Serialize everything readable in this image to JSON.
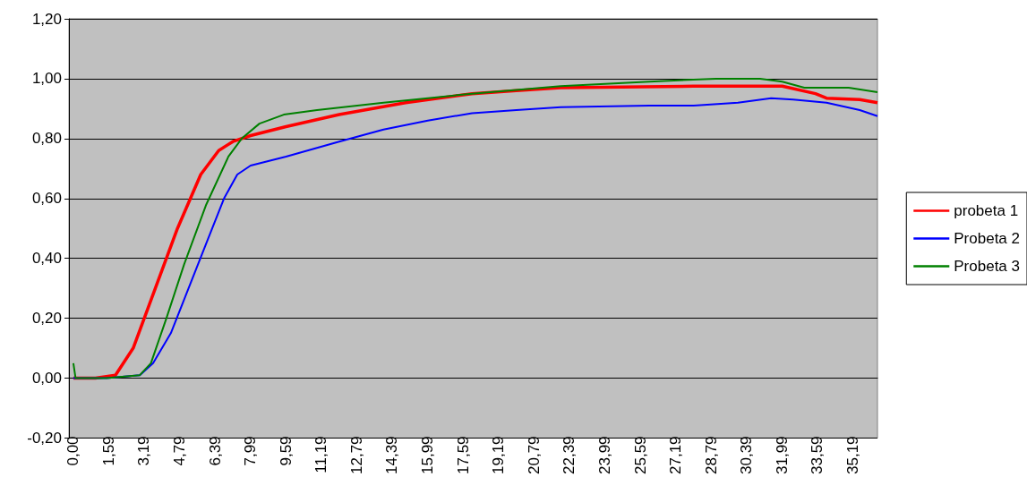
{
  "chart_data": {
    "type": "line",
    "xlim": [
      -0.2,
      36.3
    ],
    "ylim": [
      -0.2,
      1.2
    ],
    "xticks": [
      {
        "value": 0,
        "label": "0,00"
      },
      {
        "value": 1.59,
        "label": "1,59"
      },
      {
        "value": 3.19,
        "label": "3,19"
      },
      {
        "value": 4.79,
        "label": "4,79"
      },
      {
        "value": 6.39,
        "label": "6,39"
      },
      {
        "value": 7.99,
        "label": "7,99"
      },
      {
        "value": 9.59,
        "label": "9,59"
      },
      {
        "value": 11.19,
        "label": "11,19"
      },
      {
        "value": 12.79,
        "label": "12,79"
      },
      {
        "value": 14.39,
        "label": "14,39"
      },
      {
        "value": 15.99,
        "label": "15,99"
      },
      {
        "value": 17.59,
        "label": "17,59"
      },
      {
        "value": 19.19,
        "label": "19,19"
      },
      {
        "value": 20.79,
        "label": "20,79"
      },
      {
        "value": 22.39,
        "label": "22,39"
      },
      {
        "value": 23.99,
        "label": "23,99"
      },
      {
        "value": 25.59,
        "label": "25,59"
      },
      {
        "value": 27.19,
        "label": "27,19"
      },
      {
        "value": 28.79,
        "label": "28,79"
      },
      {
        "value": 30.39,
        "label": "30,39"
      },
      {
        "value": 31.99,
        "label": "31,99"
      },
      {
        "value": 33.59,
        "label": "33,59"
      },
      {
        "value": 35.19,
        "label": "35,19"
      }
    ],
    "yticks": [
      {
        "value": -0.2,
        "label": "-0,20"
      },
      {
        "value": 0,
        "label": "0,00"
      },
      {
        "value": 0.2,
        "label": "0,20"
      },
      {
        "value": 0.4,
        "label": "0,40"
      },
      {
        "value": 0.6,
        "label": "0,60"
      },
      {
        "value": 0.8,
        "label": "0,80"
      },
      {
        "value": 1.0,
        "label": "1,00"
      },
      {
        "value": 1.2,
        "label": "1,20"
      }
    ],
    "grid": "y",
    "legend": "right",
    "marker": "none",
    "line_style": "solid",
    "series": [
      {
        "name": "probeta 1",
        "color": "#ff0000",
        "x": [
          0,
          1.0,
          1.9,
          2.7,
          3.7,
          4.7,
          5.75,
          6.56,
          7.2,
          8.0,
          9.6,
          12,
          15,
          18,
          20,
          22,
          28,
          32,
          33.5,
          34,
          35.5,
          36.3
        ],
        "values": [
          0,
          0,
          0.01,
          0.1,
          0.3,
          0.5,
          0.68,
          0.76,
          0.79,
          0.81,
          0.84,
          0.88,
          0.92,
          0.95,
          0.96,
          0.97,
          0.975,
          0.975,
          0.95,
          0.935,
          0.93,
          0.92
        ]
      },
      {
        "name": "Probeta 2",
        "color": "#0000ff",
        "x": [
          0,
          1.5,
          3.0,
          3.6,
          4.4,
          5.2,
          6.0,
          6.8,
          7.4,
          8.0,
          9.6,
          12,
          14,
          16,
          18,
          20,
          22,
          26,
          28,
          30,
          31.5,
          32.5,
          34,
          35.5,
          36.3
        ],
        "values": [
          0,
          0,
          0.01,
          0.05,
          0.15,
          0.3,
          0.45,
          0.6,
          0.68,
          0.71,
          0.74,
          0.79,
          0.83,
          0.86,
          0.885,
          0.895,
          0.905,
          0.91,
          0.91,
          0.92,
          0.935,
          0.93,
          0.92,
          0.895,
          0.875
        ]
      },
      {
        "name": "Probeta 3",
        "color": "#008000",
        "x": [
          0,
          0.1,
          1.5,
          3.0,
          3.5,
          4.2,
          5.0,
          6.0,
          7.0,
          7.6,
          8.4,
          9.5,
          11,
          14,
          18,
          22,
          26,
          29,
          31,
          32,
          33,
          35,
          36.3
        ],
        "values": [
          0.05,
          0,
          0,
          0.01,
          0.05,
          0.2,
          0.38,
          0.58,
          0.74,
          0.8,
          0.85,
          0.88,
          0.895,
          0.92,
          0.95,
          0.975,
          0.99,
          1.0,
          1.0,
          0.99,
          0.97,
          0.97,
          0.955
        ]
      }
    ]
  }
}
